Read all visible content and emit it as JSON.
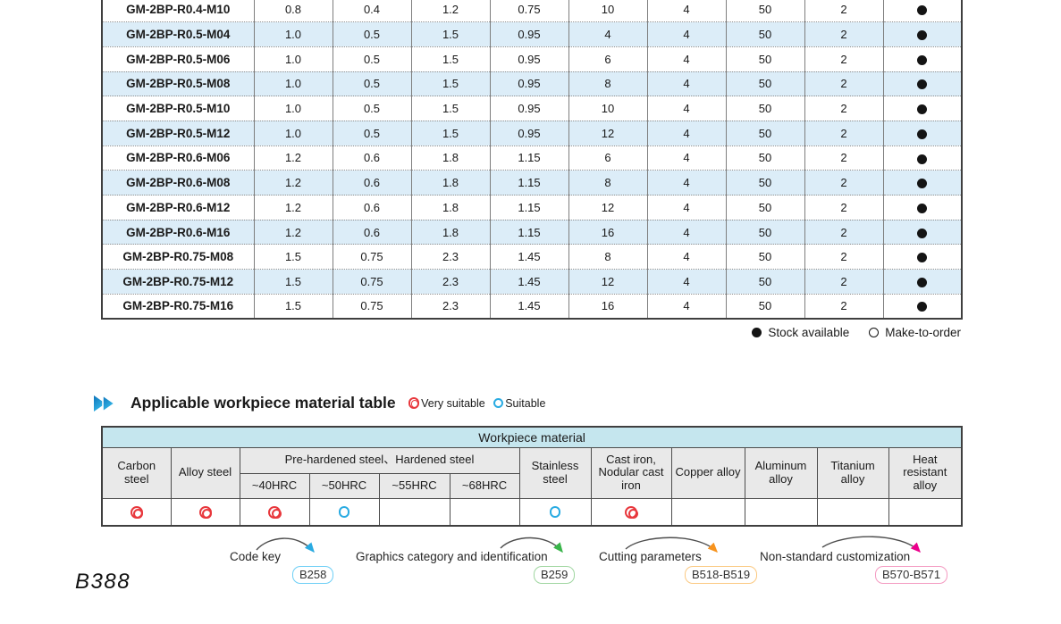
{
  "spec_table": {
    "rows": [
      {
        "model": "GM-2BP-R0.4-M10",
        "values": [
          "0.8",
          "0.4",
          "1.2",
          "0.75",
          "10",
          "4",
          "50",
          "2"
        ],
        "stock": "filled"
      },
      {
        "model": "GM-2BP-R0.5-M04",
        "values": [
          "1.0",
          "0.5",
          "1.5",
          "0.95",
          "4",
          "4",
          "50",
          "2"
        ],
        "stock": "filled"
      },
      {
        "model": "GM-2BP-R0.5-M06",
        "values": [
          "1.0",
          "0.5",
          "1.5",
          "0.95",
          "6",
          "4",
          "50",
          "2"
        ],
        "stock": "filled"
      },
      {
        "model": "GM-2BP-R0.5-M08",
        "values": [
          "1.0",
          "0.5",
          "1.5",
          "0.95",
          "8",
          "4",
          "50",
          "2"
        ],
        "stock": "filled"
      },
      {
        "model": "GM-2BP-R0.5-M10",
        "values": [
          "1.0",
          "0.5",
          "1.5",
          "0.95",
          "10",
          "4",
          "50",
          "2"
        ],
        "stock": "filled"
      },
      {
        "model": "GM-2BP-R0.5-M12",
        "values": [
          "1.0",
          "0.5",
          "1.5",
          "0.95",
          "12",
          "4",
          "50",
          "2"
        ],
        "stock": "filled"
      },
      {
        "model": "GM-2BP-R0.6-M06",
        "values": [
          "1.2",
          "0.6",
          "1.8",
          "1.15",
          "6",
          "4",
          "50",
          "2"
        ],
        "stock": "filled"
      },
      {
        "model": "GM-2BP-R0.6-M08",
        "values": [
          "1.2",
          "0.6",
          "1.8",
          "1.15",
          "8",
          "4",
          "50",
          "2"
        ],
        "stock": "filled"
      },
      {
        "model": "GM-2BP-R0.6-M12",
        "values": [
          "1.2",
          "0.6",
          "1.8",
          "1.15",
          "12",
          "4",
          "50",
          "2"
        ],
        "stock": "filled"
      },
      {
        "model": "GM-2BP-R0.6-M16",
        "values": [
          "1.2",
          "0.6",
          "1.8",
          "1.15",
          "16",
          "4",
          "50",
          "2"
        ],
        "stock": "filled"
      },
      {
        "model": "GM-2BP-R0.75-M08",
        "values": [
          "1.5",
          "0.75",
          "2.3",
          "1.45",
          "8",
          "4",
          "50",
          "2"
        ],
        "stock": "filled"
      },
      {
        "model": "GM-2BP-R0.75-M12",
        "values": [
          "1.5",
          "0.75",
          "2.3",
          "1.45",
          "12",
          "4",
          "50",
          "2"
        ],
        "stock": "filled"
      },
      {
        "model": "GM-2BP-R0.75-M16",
        "values": [
          "1.5",
          "0.75",
          "2.3",
          "1.45",
          "16",
          "4",
          "50",
          "2"
        ],
        "stock": "filled"
      }
    ],
    "legend": {
      "stock_available": "Stock available",
      "make_to_order": "Make-to-order"
    }
  },
  "section": {
    "title": "Applicable workpiece material table",
    "legend_very": "Very suitable",
    "legend_suitable": "Suitable"
  },
  "material_table": {
    "title": "Workpiece material",
    "col_carbon": "Carbon steel",
    "col_alloy": "Alloy steel",
    "group_prehardened": "Pre-hardened steel、Hardened steel",
    "sub_hrc": [
      "~40HRC",
      "~50HRC",
      "~55HRC",
      "~68HRC"
    ],
    "col_stainless": "Stainless steel",
    "col_cast_iron": "Cast iron, Nodular cast iron",
    "col_copper": "Copper alloy",
    "col_aluminum": "Aluminum alloy",
    "col_titanium": "Titanium alloy",
    "col_heat": "Heat resistant alloy",
    "ratings": [
      "very_suitable",
      "very_suitable",
      "very_suitable",
      "suitable",
      "",
      "",
      "suitable",
      "very_suitable",
      "",
      "",
      "",
      ""
    ]
  },
  "footer": {
    "links": [
      {
        "label": "Code key",
        "badge": "B258",
        "arrow_color": "#29abe2",
        "badge_border": "#6dcff6"
      },
      {
        "label": "Graphics category and identification",
        "badge": "B259",
        "arrow_color": "#39b54a",
        "badge_border": "#9fd6a0"
      },
      {
        "label": "Cutting parameters",
        "badge": "B518-B519",
        "arrow_color": "#f7931e",
        "badge_border": "#fbc981"
      },
      {
        "label": "Non-standard customization",
        "badge": "B570-B571",
        "arrow_color": "#ec008c",
        "badge_border": "#f49ac1"
      }
    ],
    "page_number": "B388"
  },
  "colors": {
    "row_stripe": "#dcedf8",
    "table_title_cyan": "#c5e6ee",
    "header_gray": "#e9e9e9",
    "very_suitable_red": "#e8383d",
    "suitable_blue": "#29abe2",
    "chevron_blue_dark": "#0d72b9",
    "chevron_blue_light": "#3cc3f0"
  }
}
